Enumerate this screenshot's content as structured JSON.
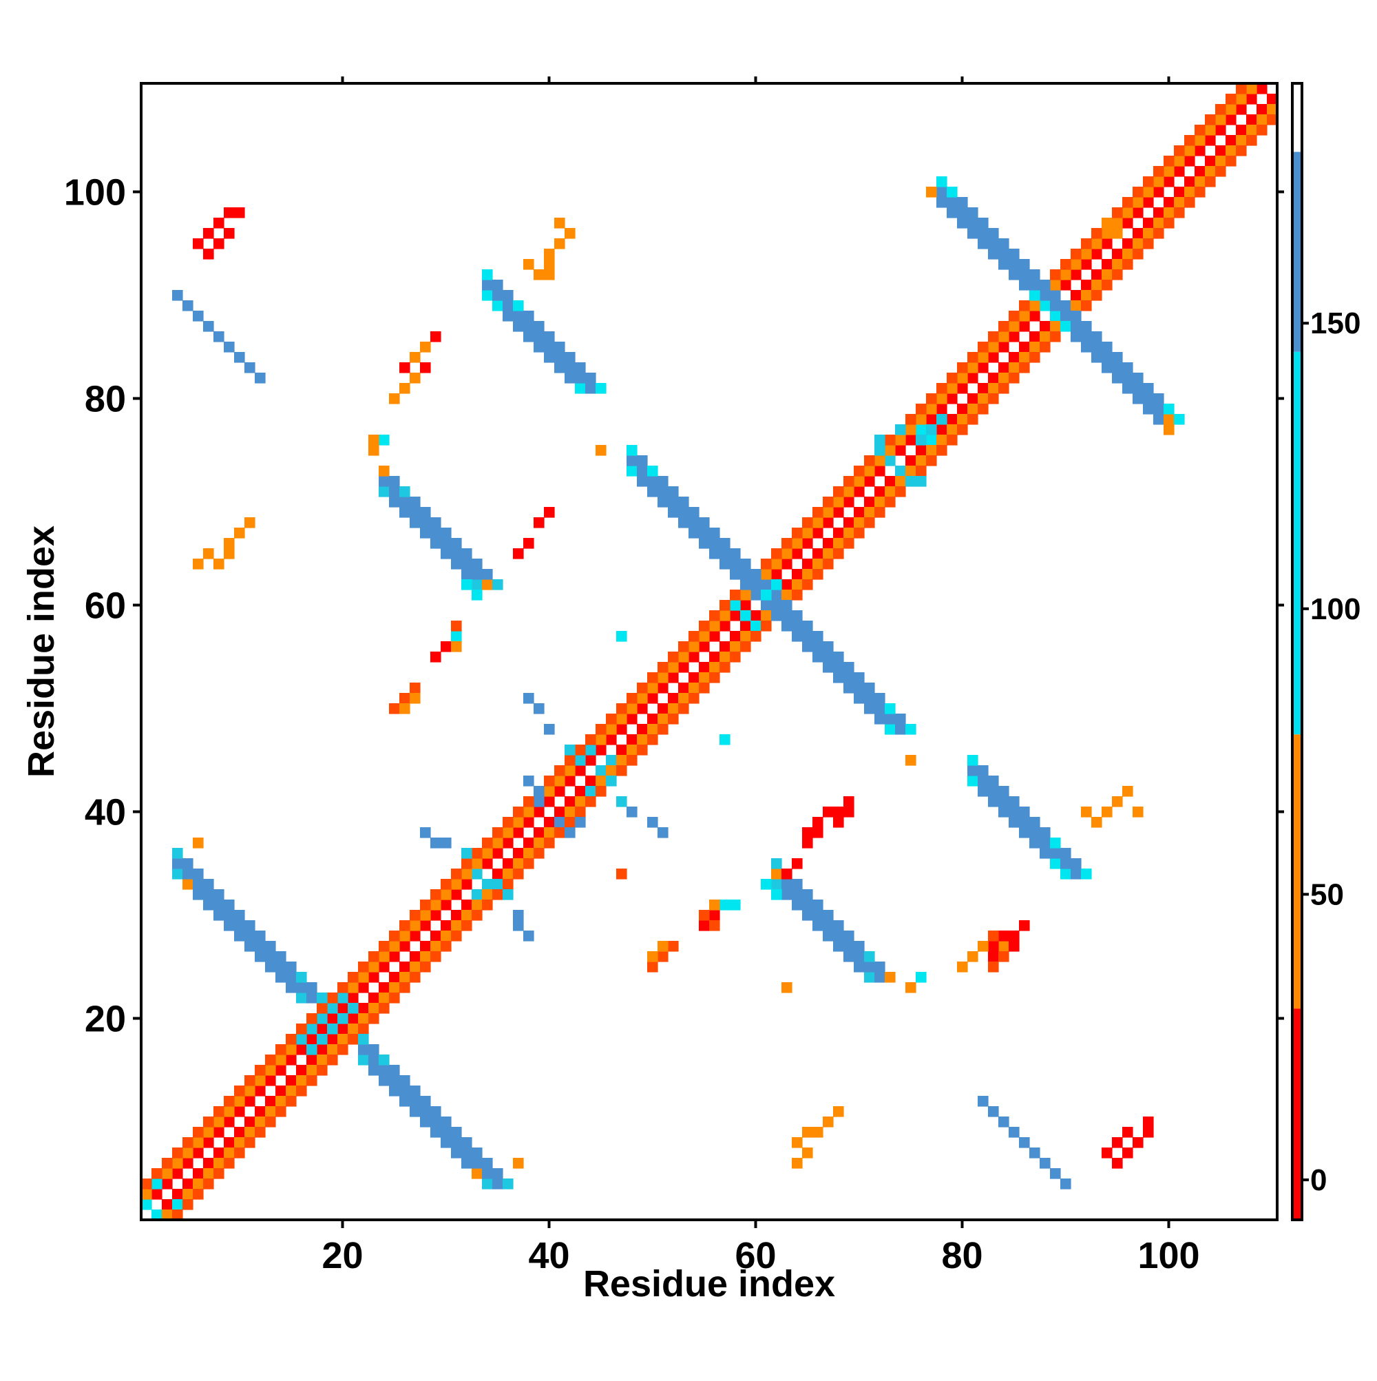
{
  "chart_data": {
    "type": "heatmap",
    "title": "",
    "xlabel": "Residue index",
    "ylabel": "Residue index",
    "xlim": [
      1,
      111
    ],
    "ylim": [
      1,
      111
    ],
    "x_ticks": [
      20,
      40,
      60,
      80,
      100
    ],
    "y_ticks": [
      20,
      40,
      60,
      80,
      100
    ],
    "colorbar": {
      "ticks": [
        0,
        50,
        100,
        150
      ],
      "range": [
        -7,
        192
      ],
      "bands": [
        {
          "from": -7,
          "to": 30,
          "color": "#ff0000"
        },
        {
          "from": 30,
          "to": 78,
          "color": "#ff8800"
        },
        {
          "from": 78,
          "to": 145,
          "color": "#00e0f0"
        },
        {
          "from": 145,
          "to": 180,
          "color": "#4a8fd0"
        },
        {
          "from": 180,
          "to": 192,
          "color": "#ffffff"
        }
      ]
    },
    "grid": false,
    "legend": "right colorbar",
    "palette": {
      "red": "#ff0000",
      "red_orange": "#ff4a00",
      "orange": "#ff8c00",
      "cyan": "#00e6f0",
      "light_blue": "#1ec8e0",
      "steel_blue": "#4a8fd0",
      "blue": "#3f7fcc"
    },
    "regions": [
      {
        "desc": "main diagonal i-1 neighbours",
        "kind": "diag",
        "offset": 1,
        "from": 1,
        "to": 110,
        "color": "red"
      },
      {
        "desc": "main diagonal i-2 neighbours",
        "kind": "diag",
        "offset": 2,
        "from": 1,
        "to": 109,
        "color": "orange"
      },
      {
        "desc": "main diagonal i-3 neighbours",
        "kind": "diag",
        "offset": 3,
        "from": 1,
        "to": 108,
        "color": "red_orange"
      },
      {
        "kind": "anti",
        "sum": 38,
        "from": 22,
        "to": 34,
        "width": 3,
        "color": "steel_blue",
        "edge": "light_blue"
      },
      {
        "kind": "anti",
        "sum": 38,
        "from": 4,
        "to": 16,
        "width": 3,
        "color": "steel_blue",
        "edge": "light_blue"
      },
      {
        "kind": "anti",
        "sum": 95,
        "from": 24,
        "to": 33,
        "width": 3,
        "color": "steel_blue",
        "edge": "light_blue"
      },
      {
        "kind": "anti",
        "sum": 95,
        "from": 62,
        "to": 71,
        "width": 3,
        "color": "steel_blue",
        "edge": "light_blue"
      },
      {
        "kind": "anti",
        "sum": 121,
        "from": 48,
        "to": 61,
        "width": 3,
        "color": "steel_blue",
        "edge": "cyan"
      },
      {
        "kind": "anti",
        "sum": 121,
        "from": 60,
        "to": 73,
        "width": 3,
        "color": "steel_blue",
        "edge": "cyan"
      },
      {
        "kind": "anti",
        "sum": 177,
        "from": 78,
        "to": 89,
        "width": 3,
        "color": "steel_blue",
        "edge": "cyan"
      },
      {
        "kind": "anti",
        "sum": 177,
        "from": 89,
        "to": 100,
        "width": 3,
        "color": "steel_blue",
        "edge": "cyan"
      },
      {
        "kind": "anti",
        "sum": 124,
        "from": 34,
        "to": 43,
        "width": 3,
        "color": "steel_blue",
        "edge": "cyan"
      },
      {
        "kind": "anti",
        "sum": 124,
        "from": 81,
        "to": 89,
        "width": 3,
        "color": "steel_blue",
        "edge": "cyan"
      },
      {
        "kind": "anti",
        "sum": 94,
        "from": 4,
        "to": 10,
        "width": 1,
        "color": "steel_blue",
        "edge": "steel_blue"
      },
      {
        "kind": "anti",
        "sum": 94,
        "from": 82,
        "to": 89,
        "width": 1,
        "color": "steel_blue",
        "edge": "steel_blue"
      },
      {
        "kind": "cells",
        "color": "light_blue",
        "cells": [
          [
            16,
            18
          ],
          [
            17,
            17
          ],
          [
            18,
            18
          ],
          [
            18,
            20
          ],
          [
            19,
            19
          ],
          [
            20,
            20
          ],
          [
            20,
            22
          ],
          [
            17,
            19
          ],
          [
            19,
            21
          ],
          [
            21,
            21
          ],
          [
            32,
            36
          ],
          [
            33,
            34
          ],
          [
            34,
            33
          ],
          [
            33,
            32
          ],
          [
            35,
            33
          ],
          [
            36,
            32
          ],
          [
            44,
            46
          ],
          [
            45,
            44
          ],
          [
            46,
            43
          ],
          [
            43,
            45
          ],
          [
            44,
            42
          ],
          [
            42,
            46
          ],
          [
            46,
            45
          ],
          [
            47,
            41
          ],
          [
            72,
            75
          ],
          [
            73,
            74
          ],
          [
            74,
            73
          ],
          [
            75,
            72
          ],
          [
            76,
            76
          ],
          [
            77,
            77
          ],
          [
            78,
            78
          ],
          [
            72,
            76
          ],
          [
            76,
            72
          ],
          [
            74,
            77
          ]
        ]
      },
      {
        "kind": "cells",
        "color": "cyan",
        "cells": [
          [
            31,
            57
          ],
          [
            57,
            31
          ],
          [
            31,
            58
          ],
          [
            58,
            31
          ],
          [
            57,
            47
          ],
          [
            47,
            57
          ],
          [
            62,
            32
          ],
          [
            32,
            62
          ],
          [
            61,
            33
          ],
          [
            33,
            61
          ],
          [
            77,
            76
          ],
          [
            76,
            77
          ],
          [
            88,
            89
          ],
          [
            89,
            88
          ],
          [
            87,
            90
          ],
          [
            90,
            87
          ],
          [
            58,
            60
          ],
          [
            60,
            58
          ],
          [
            59,
            59
          ],
          [
            61,
            61
          ],
          [
            62,
            62
          ],
          [
            24,
            76
          ],
          [
            76,
            24
          ],
          [
            2,
            1
          ],
          [
            1,
            2
          ],
          [
            4,
            2
          ],
          [
            2,
            4
          ]
        ]
      },
      {
        "kind": "cells",
        "color": "steel_blue",
        "cells": [
          [
            38,
            51
          ],
          [
            39,
            50
          ],
          [
            40,
            48
          ],
          [
            51,
            38
          ],
          [
            50,
            39
          ],
          [
            48,
            40
          ],
          [
            41,
            39
          ],
          [
            42,
            38
          ],
          [
            43,
            39
          ],
          [
            39,
            42
          ],
          [
            38,
            43
          ],
          [
            39,
            41
          ],
          [
            29,
            37
          ],
          [
            30,
            37
          ],
          [
            37,
            29
          ],
          [
            37,
            30
          ],
          [
            28,
            38
          ],
          [
            38,
            28
          ]
        ]
      },
      {
        "kind": "cells",
        "color": "red",
        "cells": [
          [
            10,
            98
          ],
          [
            9,
            96
          ],
          [
            8,
            95
          ],
          [
            7,
            94
          ],
          [
            98,
            10
          ],
          [
            96,
            9
          ],
          [
            95,
            8
          ],
          [
            94,
            7
          ],
          [
            27,
            84
          ],
          [
            28,
            85
          ],
          [
            26,
            83
          ],
          [
            84,
            27
          ],
          [
            85,
            28
          ],
          [
            83,
            26
          ],
          [
            30,
            56
          ],
          [
            29,
            55
          ],
          [
            56,
            30
          ],
          [
            55,
            29
          ],
          [
            40,
            69
          ],
          [
            39,
            68
          ],
          [
            38,
            66
          ],
          [
            37,
            65
          ],
          [
            69,
            40
          ],
          [
            68,
            39
          ],
          [
            66,
            38
          ],
          [
            65,
            37
          ],
          [
            66,
            39
          ],
          [
            67,
            40
          ],
          [
            68,
            40
          ],
          [
            65,
            38
          ],
          [
            69,
            41
          ],
          [
            64,
            35
          ],
          [
            63,
            34
          ],
          [
            95,
            6
          ],
          [
            96,
            7
          ],
          [
            97,
            8
          ],
          [
            98,
            9
          ],
          [
            6,
            95
          ],
          [
            7,
            96
          ],
          [
            8,
            97
          ],
          [
            9,
            98
          ],
          [
            84,
            28
          ],
          [
            85,
            27
          ],
          [
            86,
            29
          ],
          [
            83,
            27
          ],
          [
            28,
            83
          ],
          [
            29,
            86
          ]
        ]
      },
      {
        "kind": "cells",
        "color": "red_orange",
        "cells": [
          [
            31,
            58
          ],
          [
            55,
            30
          ],
          [
            56,
            29
          ],
          [
            47,
            34
          ],
          [
            83,
            28
          ],
          [
            84,
            26
          ],
          [
            83,
            25
          ],
          [
            25,
            50
          ],
          [
            26,
            51
          ],
          [
            27,
            52
          ],
          [
            50,
            25
          ],
          [
            51,
            26
          ],
          [
            52,
            27
          ]
        ]
      },
      {
        "kind": "cells",
        "color": "orange",
        "cells": [
          [
            8,
            64
          ],
          [
            9,
            65
          ],
          [
            10,
            67
          ],
          [
            11,
            68
          ],
          [
            64,
            8
          ],
          [
            65,
            9
          ],
          [
            67,
            10
          ],
          [
            68,
            11
          ],
          [
            6,
            37
          ],
          [
            37,
            6
          ],
          [
            41,
            95
          ],
          [
            42,
            96
          ],
          [
            40,
            94
          ],
          [
            95,
            41
          ],
          [
            96,
            42
          ],
          [
            94,
            40
          ],
          [
            94,
            97
          ],
          [
            95,
            96
          ],
          [
            96,
            94
          ],
          [
            97,
            95
          ],
          [
            97,
            40
          ],
          [
            41,
            97
          ],
          [
            40,
            93
          ],
          [
            38,
            93
          ],
          [
            64,
            6
          ],
          [
            65,
            7
          ],
          [
            66,
            9
          ],
          [
            67,
            10
          ],
          [
            6,
            64
          ],
          [
            7,
            65
          ],
          [
            9,
            66
          ],
          [
            10,
            67
          ],
          [
            26,
            50
          ],
          [
            27,
            51
          ],
          [
            50,
            26
          ],
          [
            51,
            27
          ],
          [
            25,
            80
          ],
          [
            26,
            81
          ],
          [
            27,
            82
          ],
          [
            80,
            25
          ],
          [
            81,
            26
          ],
          [
            82,
            27
          ],
          [
            27,
            84
          ],
          [
            28,
            85
          ],
          [
            84,
            27
          ],
          [
            92,
            40
          ],
          [
            93,
            39
          ],
          [
            39,
            92
          ],
          [
            40,
            92
          ],
          [
            56,
            31
          ],
          [
            31,
            56
          ],
          [
            62,
            34
          ],
          [
            34,
            62
          ],
          [
            5,
            33
          ],
          [
            33,
            5
          ],
          [
            23,
            75
          ],
          [
            75,
            23
          ],
          [
            73,
            24
          ],
          [
            24,
            73
          ],
          [
            23,
            76
          ],
          [
            63,
            23
          ],
          [
            100,
            77
          ],
          [
            77,
            100
          ],
          [
            100,
            78
          ],
          [
            45,
            75
          ],
          [
            75,
            45
          ]
        ]
      }
    ]
  }
}
